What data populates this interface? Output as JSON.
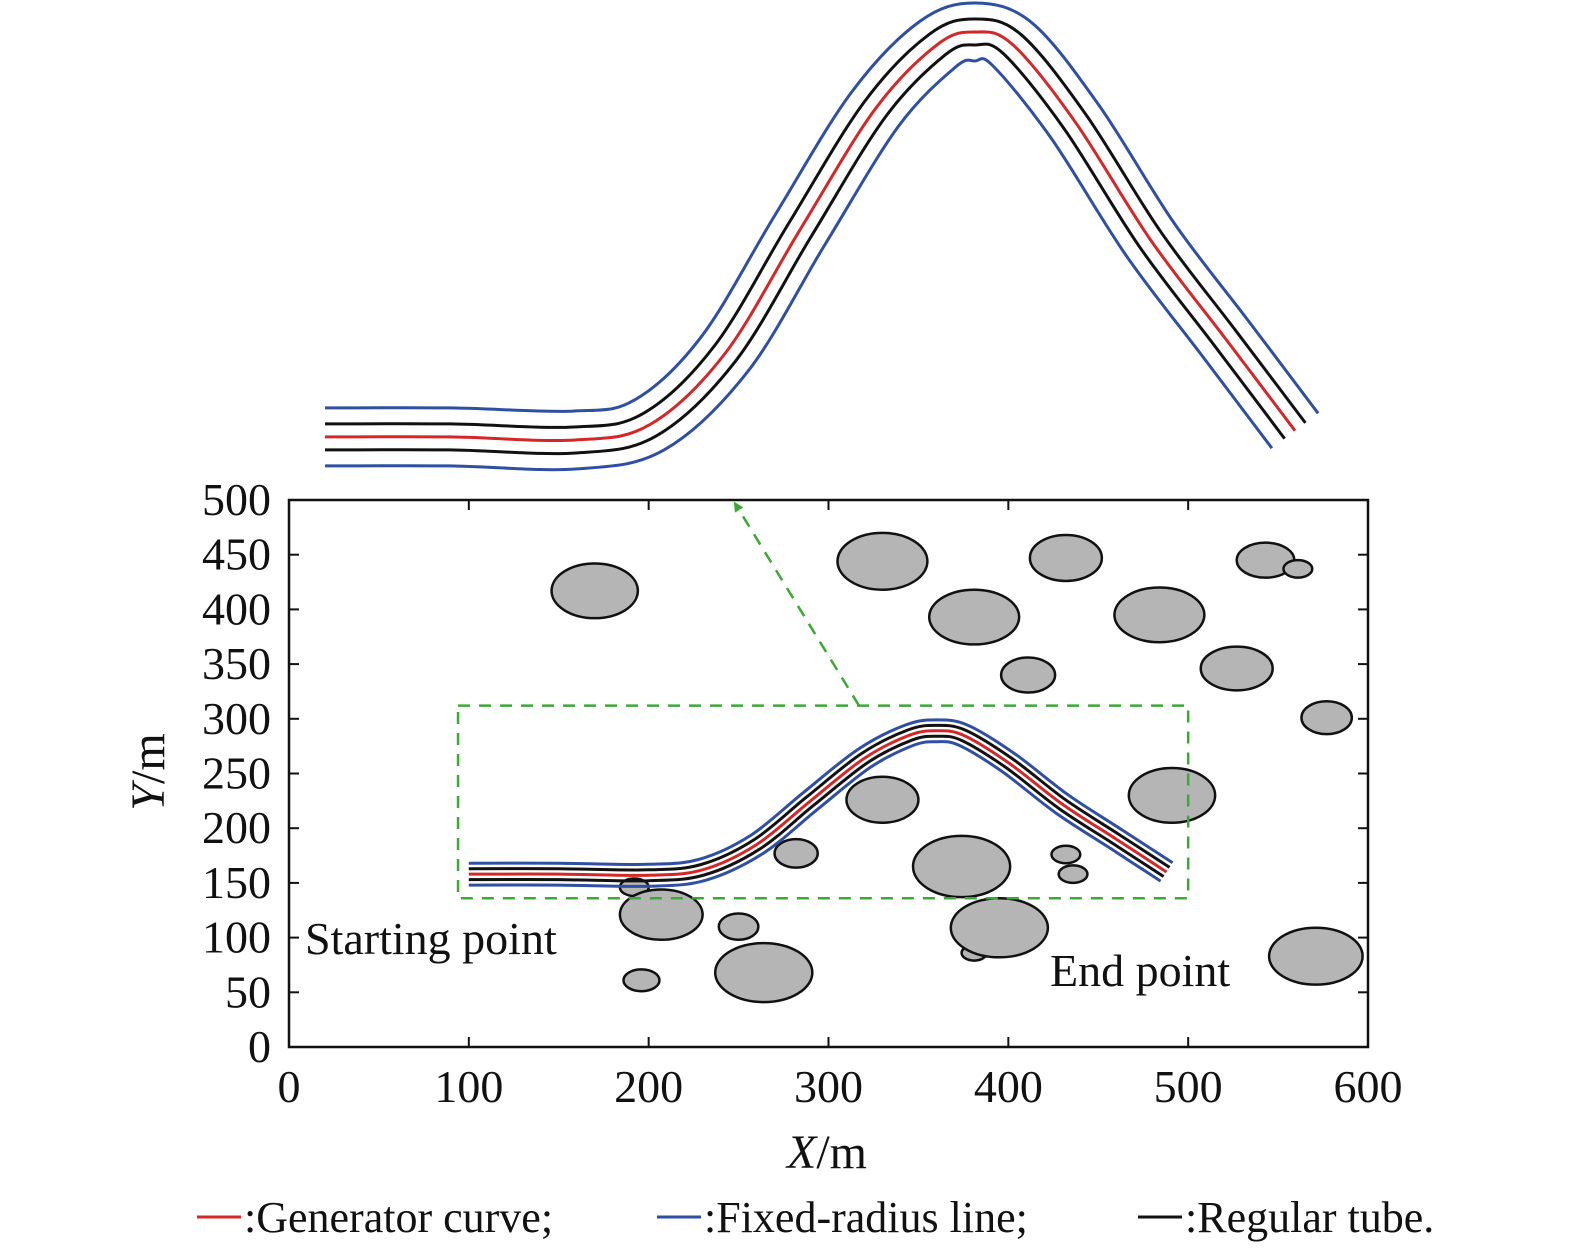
{
  "chart_data": {
    "type": "line",
    "xlabel_var": "X",
    "xlabel_unit": "/m",
    "ylabel_var": "Y",
    "ylabel_unit": "/m",
    "xlim": [
      0,
      600
    ],
    "ylim": [
      0,
      500
    ],
    "xticks": [
      0,
      100,
      200,
      300,
      400,
      500,
      600
    ],
    "yticks": [
      0,
      50,
      100,
      150,
      200,
      250,
      300,
      350,
      400,
      450,
      500
    ],
    "xtick_labels": [
      "0",
      "100",
      "200",
      "300",
      "400",
      "500",
      "600"
    ],
    "ytick_labels": [
      "0",
      "50",
      "100",
      "150",
      "200",
      "250",
      "300",
      "350",
      "400",
      "450",
      "500"
    ],
    "grid": false,
    "legend_position": "bottom",
    "annotations": {
      "start": "Starting point",
      "end": "End point"
    },
    "colors": {
      "generator": "#d62728",
      "fixed": "#2f4fa2",
      "tube": "#111111",
      "obstacle_fill": "#b5b5b5",
      "zoom_box": "#3aaa35"
    },
    "legend": [
      {
        "key": "generator",
        "label": ":Generator curve;"
      },
      {
        "key": "fixed",
        "label": ":Fixed-radius line;"
      },
      {
        "key": "tube",
        "label": ":Regular tube."
      }
    ],
    "generator_curve": {
      "x": [
        100,
        150,
        200,
        230,
        260,
        290,
        320,
        345,
        360,
        375,
        400,
        430,
        460,
        488
      ],
      "y": [
        158,
        158,
        157,
        162,
        185,
        225,
        264,
        285,
        289,
        285,
        260,
        222,
        190,
        160
      ]
    },
    "tube_offset": 5,
    "fixed_radius_offset": 10,
    "zoom_box": {
      "x": [
        94,
        500
      ],
      "y": [
        136,
        312
      ]
    },
    "zoom_arrow": {
      "from": [
        317,
        312
      ],
      "to": [
        248,
        497
      ]
    },
    "obstacles": [
      {
        "cx": 170,
        "cy": 417,
        "rx": 24,
        "ry": 25
      },
      {
        "cx": 330,
        "cy": 444,
        "rx": 25,
        "ry": 26
      },
      {
        "cx": 432,
        "cy": 447,
        "rx": 20,
        "ry": 21
      },
      {
        "cx": 543,
        "cy": 445,
        "rx": 16,
        "ry": 16
      },
      {
        "cx": 561,
        "cy": 437,
        "rx": 8,
        "ry": 8
      },
      {
        "cx": 381,
        "cy": 393,
        "rx": 25,
        "ry": 25
      },
      {
        "cx": 484,
        "cy": 395,
        "rx": 25,
        "ry": 25
      },
      {
        "cx": 527,
        "cy": 346,
        "rx": 20,
        "ry": 20
      },
      {
        "cx": 411,
        "cy": 340,
        "rx": 15,
        "ry": 16
      },
      {
        "cx": 577,
        "cy": 301,
        "rx": 14,
        "ry": 15
      },
      {
        "cx": 330,
        "cy": 226,
        "rx": 20,
        "ry": 21
      },
      {
        "cx": 491,
        "cy": 230,
        "rx": 24,
        "ry": 25
      },
      {
        "cx": 282,
        "cy": 177,
        "rx": 12,
        "ry": 13
      },
      {
        "cx": 374,
        "cy": 165,
        "rx": 27,
        "ry": 28
      },
      {
        "cx": 432,
        "cy": 176,
        "rx": 8,
        "ry": 8
      },
      {
        "cx": 436,
        "cy": 158,
        "rx": 8,
        "ry": 8
      },
      {
        "cx": 192,
        "cy": 146,
        "rx": 8,
        "ry": 8
      },
      {
        "cx": 207,
        "cy": 121,
        "rx": 23,
        "ry": 23
      },
      {
        "cx": 250,
        "cy": 110,
        "rx": 11,
        "ry": 12
      },
      {
        "cx": 264,
        "cy": 68,
        "rx": 27,
        "ry": 27
      },
      {
        "cx": 196,
        "cy": 61,
        "rx": 10,
        "ry": 10
      },
      {
        "cx": 381,
        "cy": 86,
        "rx": 7,
        "ry": 7
      },
      {
        "cx": 395,
        "cy": 109,
        "rx": 27,
        "ry": 27
      },
      {
        "cx": 571,
        "cy": 83,
        "rx": 26,
        "ry": 26
      }
    ]
  }
}
